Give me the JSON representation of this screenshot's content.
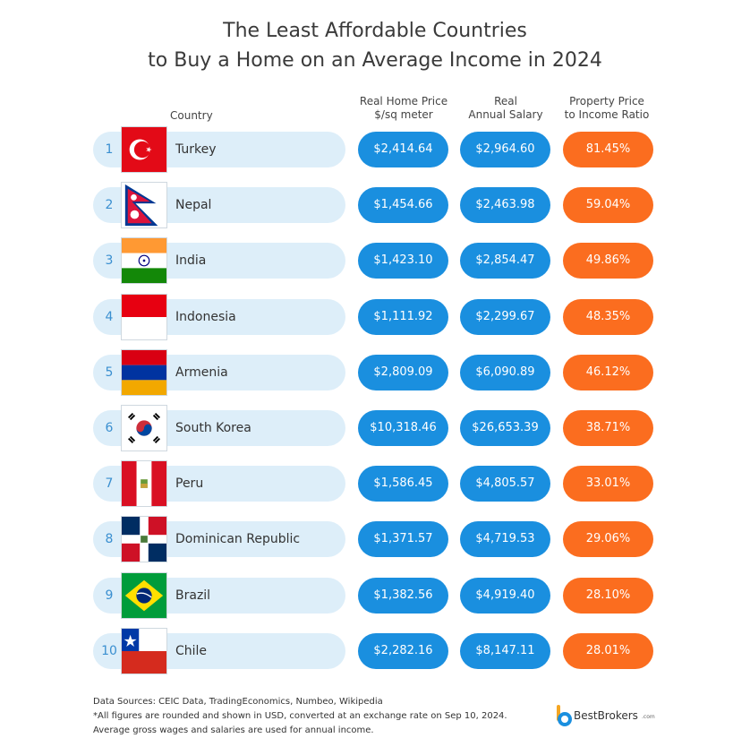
{
  "title_line1": "The Least Affordable Countries",
  "title_line2": "to Buy a Home on an Average Income in 2024",
  "chart_data": {
    "type": "table",
    "columns": {
      "country": "Country",
      "price_line1": "Real Home Price",
      "price_line2": "$/sq meter",
      "salary_line1": "Real",
      "salary_line2": "Annual Salary",
      "ratio_line1": "Property Price",
      "ratio_line2": "to Income Ratio"
    },
    "rows": [
      {
        "rank": "1",
        "country": "Turkey",
        "price": "$2,414.64",
        "salary": "$2,964.60",
        "ratio": "81.45%"
      },
      {
        "rank": "2",
        "country": "Nepal",
        "price": "$1,454.66",
        "salary": "$2,463.98",
        "ratio": "59.04%"
      },
      {
        "rank": "3",
        "country": "India",
        "price": "$1,423.10",
        "salary": "$2,854.47",
        "ratio": "49.86%"
      },
      {
        "rank": "4",
        "country": "Indonesia",
        "price": "$1,111.92",
        "salary": "$2,299.67",
        "ratio": "48.35%"
      },
      {
        "rank": "5",
        "country": "Armenia",
        "price": "$2,809.09",
        "salary": "$6,090.89",
        "ratio": "46.12%"
      },
      {
        "rank": "6",
        "country": "South Korea",
        "price": "$10,318.46",
        "salary": "$26,653.39",
        "ratio": "38.71%"
      },
      {
        "rank": "7",
        "country": "Peru",
        "price": "$1,586.45",
        "salary": "$4,805.57",
        "ratio": "33.01%"
      },
      {
        "rank": "8",
        "country": "Dominican Republic",
        "price": "$1,371.57",
        "salary": "$4,719.53",
        "ratio": "29.06%"
      },
      {
        "rank": "9",
        "country": "Brazil",
        "price": "$1,382.56",
        "salary": "$4,919.40",
        "ratio": "28.10%"
      },
      {
        "rank": "10",
        "country": "Chile",
        "price": "$2,282.16",
        "salary": "$8,147.11",
        "ratio": "28.01%"
      }
    ]
  },
  "colors": {
    "row_bg": "#ddeef9",
    "blue_pill": "#1a8fdf",
    "orange_pill": "#fb6d1f",
    "rank_text": "#3a8fd0"
  },
  "footer": {
    "line1": "Data Sources: CEIC Data, TradingEconomics, Numbeo, Wikipedia",
    "line2": "*All figures are rounded and shown in USD, converted at an exchange rate on Sep 10, 2024.",
    "line3": "Average gross wages and salaries are used for annual income."
  },
  "brand": {
    "name": "BestBrokers",
    "suffix": ".com",
    "icon": "bestbrokers-logo-icon"
  }
}
